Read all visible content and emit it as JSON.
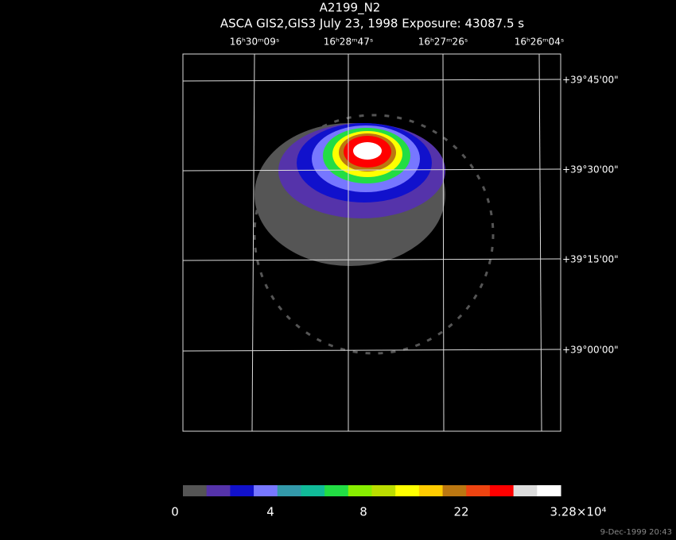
{
  "header": {
    "title": "A2199_N2",
    "subtitle": "ASCA GIS2,GIS3 July 23, 1998 Exposure: 43087.5 s"
  },
  "ra_labels": [
    "16ʰ30ᵐ09ˢ",
    "16ʰ28ᵐ47ˢ",
    "16ʰ27ᵐ26ˢ",
    "16ʰ26ᵐ04ˢ"
  ],
  "dec_labels": [
    "+39°45'00\"",
    "+39°30'00\"",
    "+39°15'00\"",
    "+39°00'00\""
  ],
  "colorbar": {
    "colors": [
      "#555555",
      "#5533aa",
      "#1111cc",
      "#7777ff",
      "#3399aa",
      "#11bb99",
      "#22dd44",
      "#88ee00",
      "#bbdd00",
      "#ffff00",
      "#ffcc00",
      "#bb7711",
      "#ee4411",
      "#ff0000",
      "#dddddd",
      "#ffffff"
    ],
    "labels": [
      "0",
      "4",
      "8",
      "22",
      "3.28×10⁴"
    ]
  },
  "timestamp": "9-Dec-1999 20:43"
}
